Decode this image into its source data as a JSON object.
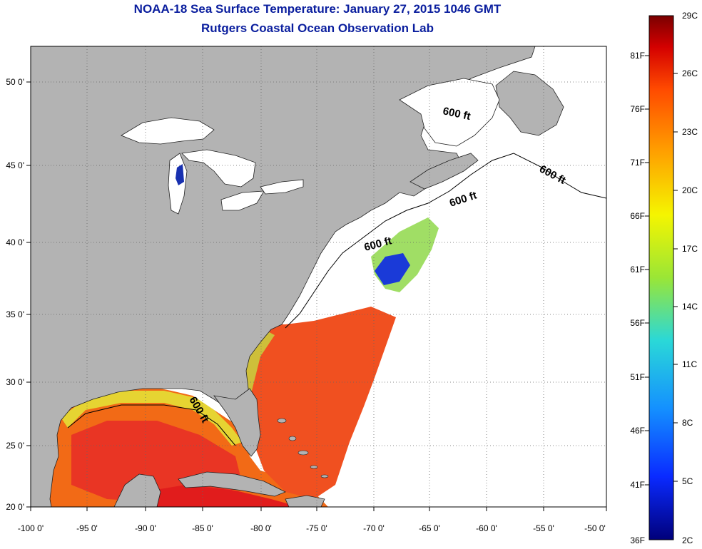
{
  "title_line1": "NOAA-18 Sea Surface Temperature:  January 27, 2015 1046 GMT",
  "title_line2": "Rutgers Coastal Ocean Observation Lab",
  "longitude_ticks": [
    "-100 0'",
    "-95 0'",
    "-90 0'",
    "-85 0'",
    "-80 0'",
    "-75 0'",
    "-70 0'",
    "-65 0'",
    "-60 0'",
    "-55 0'",
    "-50 0'"
  ],
  "latitude_ticks": [
    "50 0'",
    "45 0'",
    "40 0'",
    "35 0'",
    "30 0'",
    "25 0'",
    "20 0'"
  ],
  "contour_labels": [
    "600 ft",
    "600 ft",
    "600 ft",
    "600 ft",
    "600 ft"
  ],
  "colorbar": {
    "celsius": [
      "29C",
      "26C",
      "23C",
      "20C",
      "17C",
      "14C",
      "11C",
      "8C",
      "5C",
      "2C"
    ],
    "fahrenheit": [
      "81F",
      "76F",
      "71F",
      "66F",
      "61F",
      "56F",
      "51F",
      "46F",
      "41F",
      "36F"
    ],
    "colors": [
      "#7a0000",
      "#d40000",
      "#ff4a00",
      "#ffa000",
      "#f5f500",
      "#9ae636",
      "#2ad8d8",
      "#1490ff",
      "#0a2aff",
      "#00007a"
    ]
  },
  "colors": {
    "land": "#b3b3b3",
    "ocean": "#ffffff",
    "title": "#0a1e9e"
  }
}
